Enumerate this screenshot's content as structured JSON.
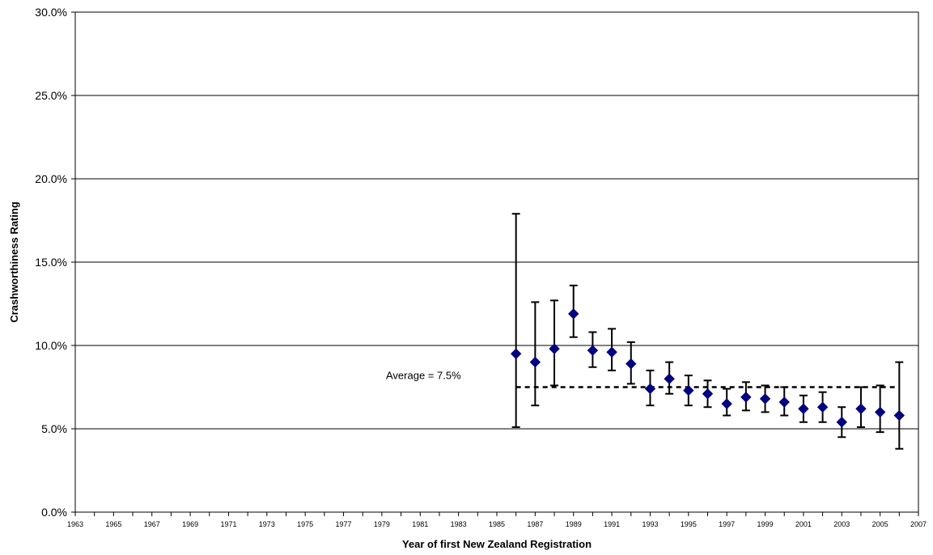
{
  "chart_data": {
    "type": "scatter",
    "title": "",
    "xlabel": "Year of first New Zealand Registration",
    "ylabel": "Crashworthiness Rating",
    "xlim": [
      1963,
      2007
    ],
    "ylim": [
      0.0,
      30.0
    ],
    "x_ticks": [
      "1963",
      "1965",
      "1967",
      "1969",
      "1971",
      "1973",
      "1975",
      "1977",
      "1979",
      "1981",
      "1983",
      "1985",
      "1987",
      "1989",
      "1991",
      "1993",
      "1995",
      "1997",
      "1999",
      "2001",
      "2003",
      "2005",
      "2007"
    ],
    "y_ticks": [
      "0.0%",
      "5.0%",
      "10.0%",
      "15.0%",
      "20.0%",
      "25.0%",
      "30.0%"
    ],
    "grid": "horizontal",
    "marker": "diamond",
    "marker_color": "#000080",
    "series": [
      {
        "points": [
          {
            "x": 1986,
            "y": 9.5,
            "lower": 5.1,
            "upper": 17.9
          },
          {
            "x": 1987,
            "y": 9.0,
            "lower": 6.4,
            "upper": 12.6
          },
          {
            "x": 1988,
            "y": 9.8,
            "lower": 7.6,
            "upper": 12.7
          },
          {
            "x": 1989,
            "y": 11.9,
            "lower": 10.5,
            "upper": 13.6
          },
          {
            "x": 1990,
            "y": 9.7,
            "lower": 8.7,
            "upper": 10.8
          },
          {
            "x": 1991,
            "y": 9.6,
            "lower": 8.5,
            "upper": 11.0
          },
          {
            "x": 1992,
            "y": 8.9,
            "lower": 7.7,
            "upper": 10.2
          },
          {
            "x": 1993,
            "y": 7.4,
            "lower": 6.4,
            "upper": 8.5
          },
          {
            "x": 1994,
            "y": 8.0,
            "lower": 7.1,
            "upper": 9.0
          },
          {
            "x": 1995,
            "y": 7.3,
            "lower": 6.4,
            "upper": 8.2
          },
          {
            "x": 1996,
            "y": 7.1,
            "lower": 6.3,
            "upper": 7.9
          },
          {
            "x": 1997,
            "y": 6.5,
            "lower": 5.8,
            "upper": 7.4
          },
          {
            "x": 1998,
            "y": 6.9,
            "lower": 6.1,
            "upper": 7.8
          },
          {
            "x": 1999,
            "y": 6.8,
            "lower": 6.0,
            "upper": 7.6
          },
          {
            "x": 2000,
            "y": 6.6,
            "lower": 5.8,
            "upper": 7.5
          },
          {
            "x": 2001,
            "y": 6.2,
            "lower": 5.4,
            "upper": 7.0
          },
          {
            "x": 2002,
            "y": 6.3,
            "lower": 5.4,
            "upper": 7.2
          },
          {
            "x": 2003,
            "y": 5.4,
            "lower": 4.5,
            "upper": 6.3
          },
          {
            "x": 2004,
            "y": 6.2,
            "lower": 5.1,
            "upper": 7.5
          },
          {
            "x": 2005,
            "y": 6.0,
            "lower": 4.8,
            "upper": 7.6
          },
          {
            "x": 2006,
            "y": 5.8,
            "lower": 3.8,
            "upper": 9.0
          }
        ]
      }
    ],
    "average": {
      "value": 7.5,
      "label": "Average = 7.5%",
      "x_start": 1986,
      "x_end": 2006,
      "style": "dashed"
    }
  }
}
